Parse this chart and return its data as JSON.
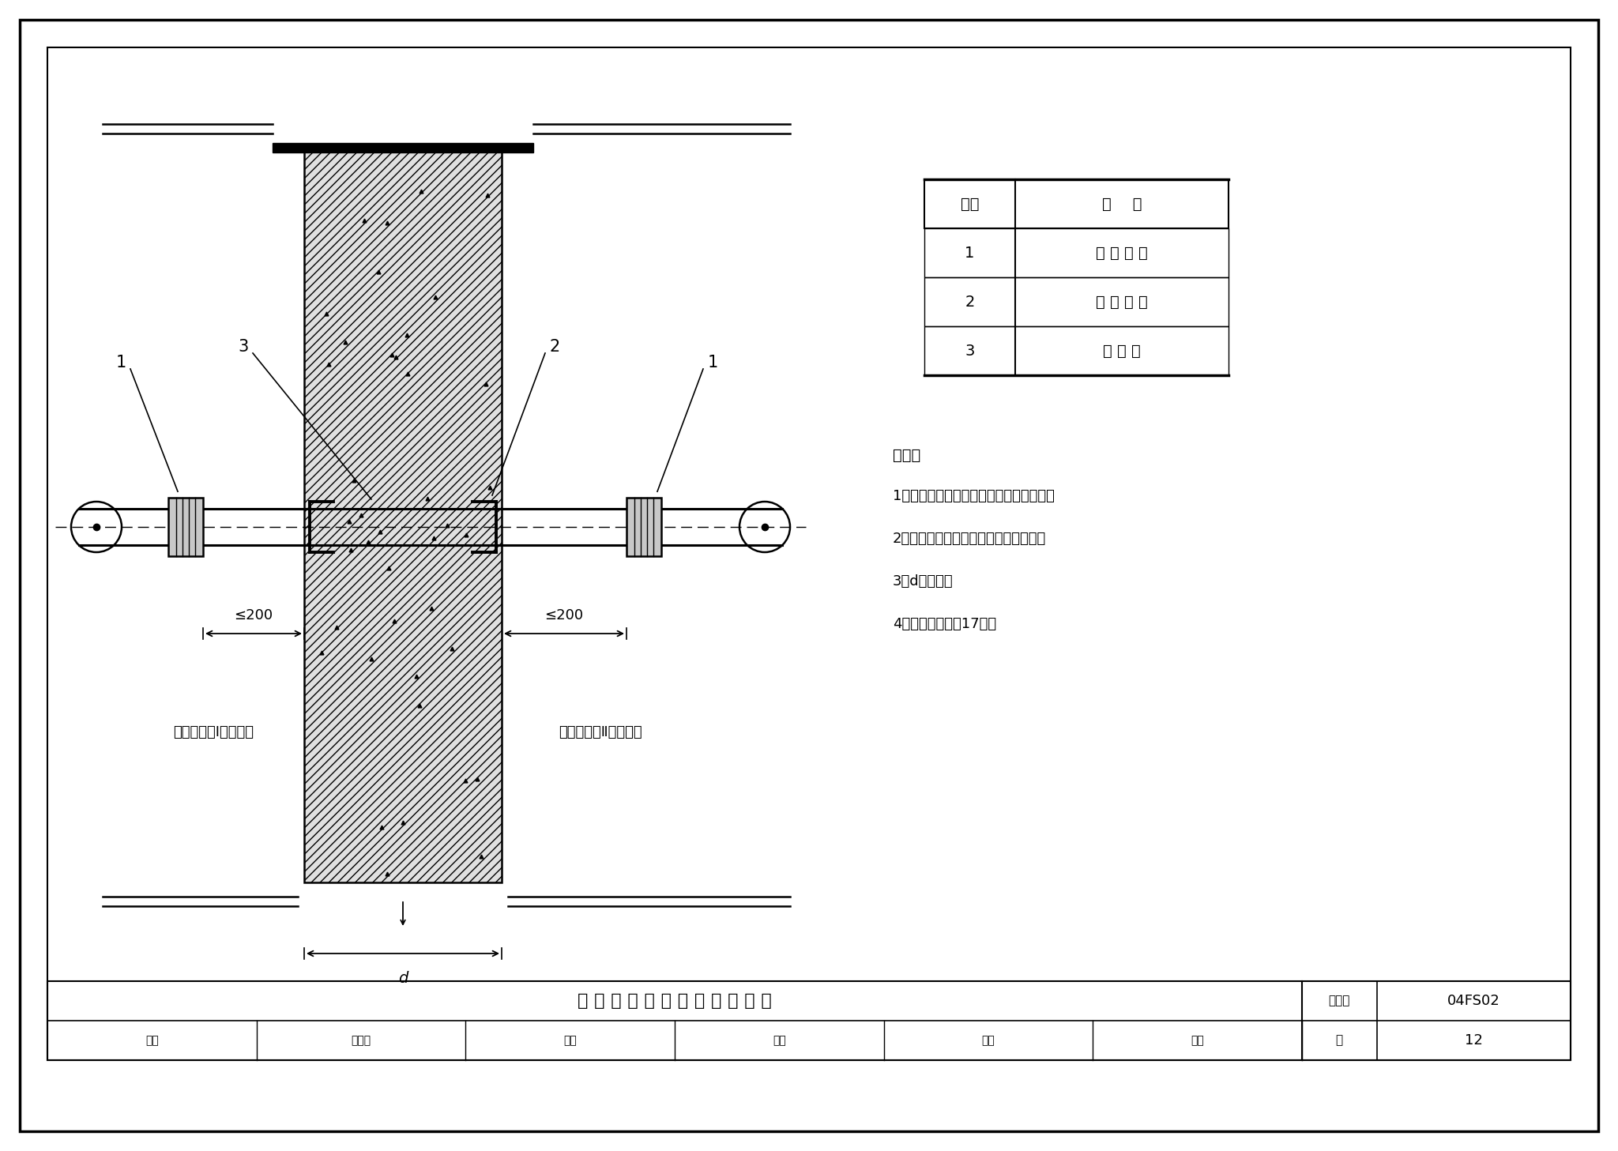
{
  "table_headers": [
    "序号",
    "名    称"
  ],
  "table_rows": [
    [
      "1",
      "防 爆 波 阀"
    ],
    [
      "2",
      "密 闭 套 管"
    ],
    [
      "3",
      "穿 墙 管"
    ]
  ],
  "notes_title": "说明：",
  "notes": [
    "1．采用刚性密闭套管，两侧均应焊挡板。",
    "2．防爆波阀应按防止冲击波方向设置。",
    "3．d为墙厉。",
    "4．密闭套管详见17页。"
  ],
  "left_label": "防空地下室Ⅰ防护单元",
  "right_label": "防空地下室Ⅱ防护单元",
  "dim_label": "≤200",
  "d_label": "d",
  "title": "管 道 穿 两 个 防 护 单 元 隔 墙 图",
  "figure_number": "04FS02",
  "page": "12",
  "page_label": "页",
  "figno_label": "图集号",
  "label_1": "1",
  "label_2": "2",
  "label_3": "3",
  "bottom_cells": [
    "审核",
    "许为民",
    "校对",
    "郭邓",
    "设计",
    "在放"
  ]
}
